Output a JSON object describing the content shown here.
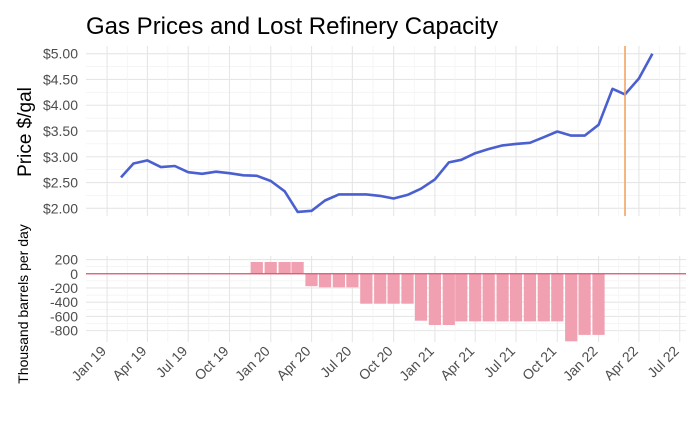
{
  "chart_data": [
    {
      "type": "line",
      "title": "Gas Prices and Lost Refinery Capacity",
      "ylabel": "Price $/gal",
      "ylim": [
        1.85,
        5.15
      ],
      "y_ticks": [
        {
          "v": 2.0,
          "label": "$2.00"
        },
        {
          "v": 2.5,
          "label": "$2.50"
        },
        {
          "v": 3.0,
          "label": "$3.00"
        },
        {
          "v": 3.5,
          "label": "$3.50"
        },
        {
          "v": 4.0,
          "label": "$4.00"
        },
        {
          "v": 4.5,
          "label": "$4.50"
        },
        {
          "v": 5.0,
          "label": "$5.00"
        }
      ],
      "line_color": "#4a5fd0",
      "marker_color": "#f4a460",
      "marker_date": "2022-03-01",
      "x": [
        "2019-02-01",
        "2019-03-01",
        "2019-04-01",
        "2019-05-01",
        "2019-06-01",
        "2019-07-01",
        "2019-08-01",
        "2019-09-01",
        "2019-10-01",
        "2019-11-01",
        "2019-12-01",
        "2020-01-01",
        "2020-02-01",
        "2020-03-01",
        "2020-04-01",
        "2020-05-01",
        "2020-06-01",
        "2020-07-01",
        "2020-08-01",
        "2020-09-01",
        "2020-10-01",
        "2020-11-01",
        "2020-12-01",
        "2021-01-01",
        "2021-02-01",
        "2021-03-01",
        "2021-04-01",
        "2021-05-01",
        "2021-06-01",
        "2021-07-01",
        "2021-08-01",
        "2021-09-01",
        "2021-10-01",
        "2021-11-01",
        "2021-12-01",
        "2022-01-01",
        "2022-02-01",
        "2022-03-01",
        "2022-04-01",
        "2022-05-01",
        "2022-06-01"
      ],
      "values": [
        2.6,
        2.87,
        2.93,
        2.8,
        2.82,
        2.7,
        2.67,
        2.71,
        2.68,
        2.64,
        2.63,
        2.53,
        2.33,
        1.93,
        1.95,
        2.15,
        2.27,
        2.27,
        2.27,
        2.24,
        2.19,
        2.26,
        2.38,
        2.56,
        2.89,
        2.94,
        3.07,
        3.15,
        3.22,
        3.25,
        3.27,
        3.38,
        3.49,
        3.41,
        3.41,
        3.62,
        4.32,
        4.21,
        4.52,
        5.0,
        null
      ]
    },
    {
      "type": "bar",
      "ylabel": "Thousand barrels per day",
      "ylim": [
        -960,
        250
      ],
      "y_ticks": [
        {
          "v": 200,
          "label": "200"
        },
        {
          "v": 0,
          "label": "0"
        },
        {
          "v": -200,
          "label": "-200"
        },
        {
          "v": -400,
          "label": "-400"
        },
        {
          "v": -600,
          "label": "-600"
        },
        {
          "v": -800,
          "label": "-800"
        }
      ],
      "bar_color": "#f0a0b0",
      "zero_line_color": "#e05070",
      "x": [
        "2019-12-01",
        "2020-01-01",
        "2020-02-01",
        "2020-03-01",
        "2020-04-01",
        "2020-05-01",
        "2020-06-01",
        "2020-07-01",
        "2020-08-01",
        "2020-09-01",
        "2020-10-01",
        "2020-11-01",
        "2020-12-01",
        "2021-01-01",
        "2021-02-01",
        "2021-03-01",
        "2021-04-01",
        "2021-05-01",
        "2021-06-01",
        "2021-07-01",
        "2021-08-01",
        "2021-09-01",
        "2021-10-01",
        "2021-11-01",
        "2021-12-01",
        "2022-01-01"
      ],
      "values": [
        165,
        165,
        165,
        165,
        -175,
        -190,
        -190,
        -190,
        -420,
        -420,
        -420,
        -420,
        -660,
        -720,
        -720,
        -670,
        -670,
        -670,
        -670,
        -670,
        -670,
        -670,
        -670,
        -950,
        -860,
        -860
      ]
    }
  ],
  "x_axis": {
    "xlim": [
      "2018-11-15",
      "2022-07-15"
    ],
    "ticks": [
      {
        "date": "2019-01-01",
        "label": "Jan 19"
      },
      {
        "date": "2019-04-01",
        "label": "Apr 19"
      },
      {
        "date": "2019-07-01",
        "label": "Jul 19"
      },
      {
        "date": "2019-10-01",
        "label": "Oct 19"
      },
      {
        "date": "2020-01-01",
        "label": "Jan 20"
      },
      {
        "date": "2020-04-01",
        "label": "Apr 20"
      },
      {
        "date": "2020-07-01",
        "label": "Jul 20"
      },
      {
        "date": "2020-10-01",
        "label": "Oct 20"
      },
      {
        "date": "2021-01-01",
        "label": "Jan 21"
      },
      {
        "date": "2021-04-01",
        "label": "Apr 21"
      },
      {
        "date": "2021-07-01",
        "label": "Jul 21"
      },
      {
        "date": "2021-10-01",
        "label": "Oct 21"
      },
      {
        "date": "2022-01-01",
        "label": "Jan 22"
      },
      {
        "date": "2022-04-01",
        "label": "Apr 22"
      },
      {
        "date": "2022-07-01",
        "label": "Jul 22"
      }
    ]
  }
}
